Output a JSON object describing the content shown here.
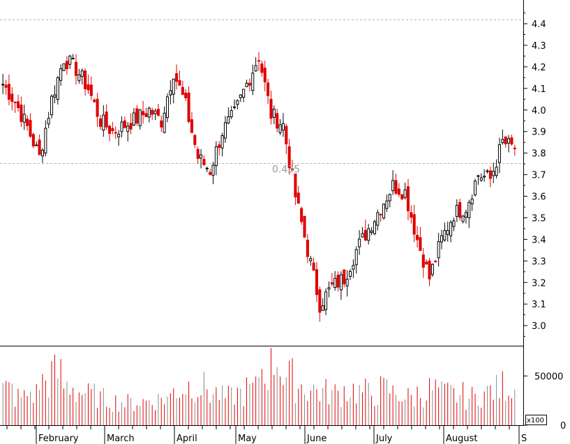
{
  "chart_data": [
    {
      "type": "candlestick",
      "title": "",
      "price_axis": {
        "ylim": [
          2.91,
          4.51
        ],
        "ticks": [
          "3.0",
          "3.1",
          "3.2",
          "3.3",
          "3.4",
          "3.5",
          "3.6",
          "3.7",
          "3.8",
          "3.9",
          "4.0",
          "4.1",
          "4.2",
          "4.3",
          "4.4"
        ]
      },
      "month_labels": [
        "February",
        "March",
        "April",
        "May",
        "June",
        "July",
        "August",
        "S"
      ],
      "reference_lines": [
        4.42,
        3.755
      ],
      "annotation": "0.435",
      "colors": {
        "up": "#000000",
        "down": "#e00000",
        "grid": "#b0b0b0",
        "background": "#ffffff"
      },
      "weekly_closes": [
        4.12,
        4.04,
        3.92,
        3.78,
        4.05,
        4.24,
        4.19,
        4.1,
        3.95,
        3.9,
        3.93,
        3.96,
        4.0,
        3.95,
        4.18,
        4.02,
        3.78,
        3.72,
        3.9,
        3.98,
        4.12,
        4.25,
        3.98,
        3.93,
        3.6,
        3.35,
        3.1,
        3.18,
        3.22,
        3.35,
        3.45,
        3.55,
        3.65,
        3.62,
        3.4,
        3.22,
        3.4,
        3.52,
        3.55,
        3.7,
        3.68,
        3.85,
        3.82
      ]
    },
    {
      "type": "bar",
      "title": "",
      "volume_axis": {
        "ylim": [
          0,
          80000
        ],
        "ticks": [
          "50000",
          "0"
        ],
        "multiplier_label": "x100"
      },
      "relative_levels": [
        0.45,
        0.35,
        0.4,
        0.55,
        0.65,
        0.5,
        0.42,
        0.38,
        0.33,
        0.3,
        0.28,
        0.3,
        0.32,
        0.35,
        0.45,
        0.5,
        0.48,
        0.4,
        0.35,
        0.4,
        0.45,
        0.7,
        0.85,
        0.6,
        0.5,
        0.45,
        0.42,
        0.4,
        0.45,
        0.42,
        0.4,
        0.45,
        0.4,
        0.35,
        0.4,
        0.45,
        0.4,
        0.38,
        0.35,
        0.4,
        0.45,
        0.5,
        0.45
      ]
    }
  ]
}
